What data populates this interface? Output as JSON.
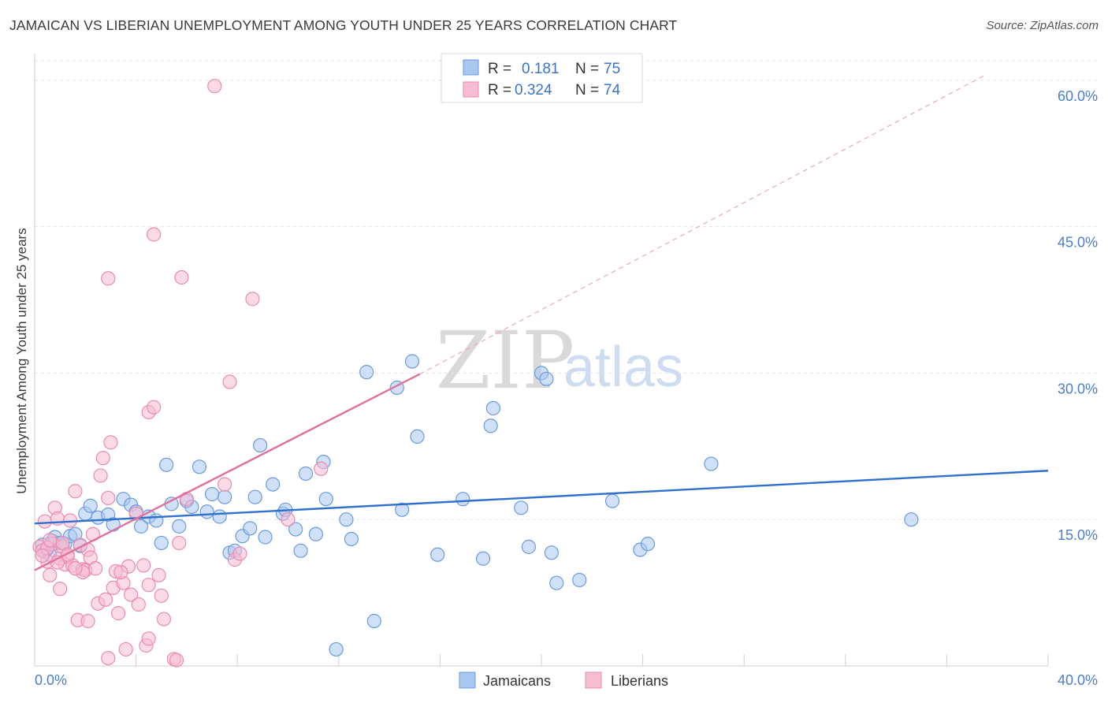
{
  "chart_data": {
    "type": "scatter",
    "title": "JAMAICAN VS LIBERIAN UNEMPLOYMENT AMONG YOUTH UNDER 25 YEARS CORRELATION CHART",
    "source": "Source: ZipAtlas.com",
    "ylabel": "Unemployment Among Youth under 25 years",
    "xlim": [
      0,
      40
    ],
    "ylim": [
      0,
      62
    ],
    "x_tick_labels": [
      "0.0%",
      "40.0%"
    ],
    "y_ticks": [
      15,
      30,
      45,
      60
    ],
    "y_tick_labels": [
      "15.0%",
      "30.0%",
      "45.0%",
      "60.0%"
    ],
    "watermark": {
      "zip": "ZIP",
      "atlas": "atlas"
    },
    "legend": [
      {
        "label": "R = ",
        "r": "0.181",
        "n_label": "N = ",
        "n": "75"
      },
      {
        "label": "R = ",
        "r": "0.324",
        "n_label": "N = ",
        "n": "74"
      }
    ],
    "series": [
      {
        "name": "Jamaicans",
        "color": "#6a9be0",
        "fill": "#a9c6ee",
        "trend": {
          "x0": 0,
          "y0": 14.6,
          "x1": 40,
          "y1": 20.0
        },
        "points": [
          [
            0.3,
            12.4
          ],
          [
            0.4,
            11.7
          ],
          [
            0.5,
            12.0
          ],
          [
            0.7,
            12.8
          ],
          [
            0.8,
            13.2
          ],
          [
            1.0,
            12.6
          ],
          [
            1.2,
            12.5
          ],
          [
            1.4,
            13.3
          ],
          [
            1.6,
            13.5
          ],
          [
            1.8,
            12.3
          ],
          [
            2.0,
            15.6
          ],
          [
            2.2,
            16.4
          ],
          [
            2.5,
            15.2
          ],
          [
            2.9,
            15.5
          ],
          [
            3.1,
            14.5
          ],
          [
            3.5,
            17.1
          ],
          [
            3.8,
            16.5
          ],
          [
            4.0,
            15.8
          ],
          [
            4.2,
            14.3
          ],
          [
            4.5,
            15.3
          ],
          [
            4.8,
            14.9
          ],
          [
            5.0,
            12.6
          ],
          [
            5.2,
            20.6
          ],
          [
            5.4,
            16.6
          ],
          [
            5.7,
            14.3
          ],
          [
            6.0,
            16.9
          ],
          [
            6.2,
            16.3
          ],
          [
            6.5,
            20.4
          ],
          [
            6.8,
            15.8
          ],
          [
            7.0,
            17.6
          ],
          [
            7.3,
            15.3
          ],
          [
            7.5,
            17.3
          ],
          [
            7.7,
            11.6
          ],
          [
            7.9,
            11.8
          ],
          [
            8.2,
            13.3
          ],
          [
            8.5,
            14.1
          ],
          [
            8.7,
            17.3
          ],
          [
            8.9,
            22.6
          ],
          [
            9.1,
            13.2
          ],
          [
            9.4,
            18.6
          ],
          [
            9.8,
            15.6
          ],
          [
            9.9,
            16.0
          ],
          [
            10.3,
            14.0
          ],
          [
            10.5,
            11.8
          ],
          [
            10.7,
            19.7
          ],
          [
            11.1,
            13.5
          ],
          [
            11.4,
            20.9
          ],
          [
            11.5,
            17.1
          ],
          [
            11.9,
            1.7
          ],
          [
            12.3,
            15.0
          ],
          [
            12.5,
            13.0
          ],
          [
            13.1,
            30.1
          ],
          [
            13.4,
            4.6
          ],
          [
            14.3,
            28.5
          ],
          [
            14.5,
            16.0
          ],
          [
            14.9,
            31.2
          ],
          [
            15.1,
            23.5
          ],
          [
            15.9,
            11.4
          ],
          [
            16.9,
            17.1
          ],
          [
            17.7,
            11.0
          ],
          [
            18.0,
            24.6
          ],
          [
            18.1,
            26.4
          ],
          [
            19.2,
            16.2
          ],
          [
            19.5,
            12.2
          ],
          [
            20.0,
            30.0
          ],
          [
            20.2,
            29.4
          ],
          [
            20.4,
            11.6
          ],
          [
            20.6,
            8.5
          ],
          [
            21.5,
            8.8
          ],
          [
            22.8,
            16.9
          ],
          [
            23.9,
            11.9
          ],
          [
            24.2,
            12.5
          ],
          [
            26.7,
            20.7
          ],
          [
            34.6,
            15.0
          ],
          [
            0.6,
            11.4
          ]
        ]
      },
      {
        "name": "Liberians",
        "color": "#ec8ab0",
        "fill": "#f6bcd2",
        "trend": {
          "x0": 0,
          "y0": 9.8,
          "x1": 15.2,
          "y1": 29.9
        },
        "trend_ext": {
          "x0": 15.2,
          "y0": 29.9,
          "x1": 37.5,
          "y1": 60.5
        },
        "points": [
          [
            0.2,
            12.2
          ],
          [
            0.3,
            11.8
          ],
          [
            0.4,
            14.8
          ],
          [
            0.5,
            10.7
          ],
          [
            0.6,
            9.3
          ],
          [
            0.7,
            12.5
          ],
          [
            0.8,
            16.2
          ],
          [
            0.9,
            15.1
          ],
          [
            1.0,
            11.0
          ],
          [
            1.0,
            7.9
          ],
          [
            1.1,
            12.2
          ],
          [
            1.2,
            10.4
          ],
          [
            1.3,
            11.2
          ],
          [
            1.4,
            14.9
          ],
          [
            1.5,
            10.3
          ],
          [
            1.6,
            17.9
          ],
          [
            1.7,
            4.7
          ],
          [
            1.8,
            12.4
          ],
          [
            1.9,
            9.9
          ],
          [
            2.0,
            9.8
          ],
          [
            2.1,
            4.6
          ],
          [
            2.1,
            11.9
          ],
          [
            2.2,
            11.1
          ],
          [
            2.4,
            10.0
          ],
          [
            2.5,
            6.4
          ],
          [
            2.6,
            19.5
          ],
          [
            2.7,
            21.3
          ],
          [
            2.8,
            6.8
          ],
          [
            2.9,
            0.8
          ],
          [
            2.9,
            17.2
          ],
          [
            3.0,
            22.9
          ],
          [
            3.1,
            8.0
          ],
          [
            3.2,
            9.7
          ],
          [
            3.3,
            5.4
          ],
          [
            3.5,
            8.5
          ],
          [
            3.6,
            1.7
          ],
          [
            3.7,
            10.2
          ],
          [
            3.8,
            7.3
          ],
          [
            4.0,
            15.6
          ],
          [
            4.1,
            6.3
          ],
          [
            4.3,
            10.3
          ],
          [
            4.4,
            2.1
          ],
          [
            4.5,
            2.8
          ],
          [
            4.5,
            8.3
          ],
          [
            4.5,
            26.0
          ],
          [
            4.7,
            44.2
          ],
          [
            4.7,
            26.5
          ],
          [
            4.9,
            9.3
          ],
          [
            5.0,
            7.2
          ],
          [
            5.1,
            4.8
          ],
          [
            5.5,
            0.7
          ],
          [
            5.6,
            0.6
          ],
          [
            5.7,
            12.6
          ],
          [
            5.8,
            39.8
          ],
          [
            6.0,
            17.1
          ],
          [
            7.5,
            18.6
          ],
          [
            7.7,
            29.1
          ],
          [
            7.9,
            10.9
          ],
          [
            8.1,
            11.5
          ],
          [
            8.6,
            37.6
          ],
          [
            10.0,
            15.0
          ],
          [
            11.3,
            20.2
          ],
          [
            7.1,
            59.4
          ],
          [
            2.9,
            39.7
          ],
          [
            0.5,
            12.1
          ],
          [
            1.1,
            12.6
          ],
          [
            1.3,
            11.4
          ],
          [
            0.9,
            10.6
          ],
          [
            2.3,
            13.5
          ],
          [
            3.4,
            9.6
          ],
          [
            1.9,
            9.6
          ],
          [
            0.3,
            11.3
          ],
          [
            0.6,
            12.9
          ],
          [
            1.6,
            10.0
          ]
        ]
      }
    ]
  }
}
